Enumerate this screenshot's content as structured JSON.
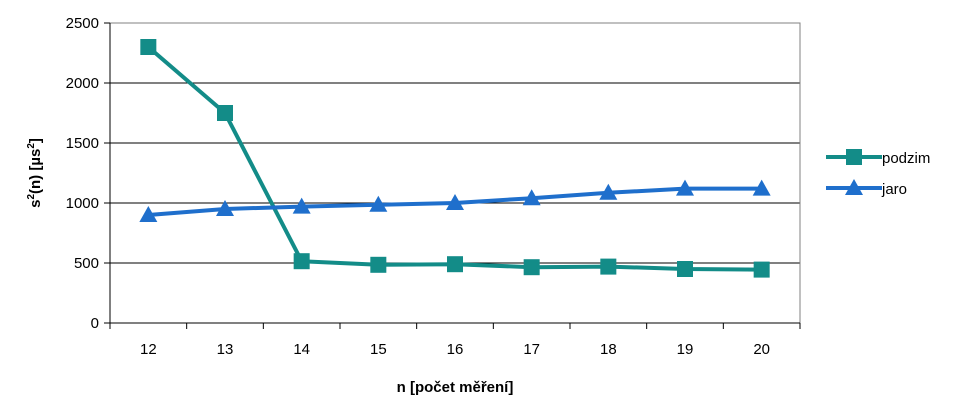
{
  "chart_data": {
    "type": "line",
    "title": "",
    "xlabel": "n [počet měření]",
    "ylabel_parts": [
      "s",
      "2",
      "(n) [µs",
      "2",
      "]"
    ],
    "categories": [
      "12",
      "13",
      "14",
      "15",
      "16",
      "17",
      "18",
      "19",
      "20"
    ],
    "x": [
      12,
      13,
      14,
      15,
      16,
      17,
      18,
      19,
      20
    ],
    "ylim": [
      0,
      2500
    ],
    "yticks": [
      0,
      500,
      1000,
      1500,
      2000,
      2500
    ],
    "grid": true,
    "legend_position": "right",
    "series": [
      {
        "name": "podzim",
        "marker": "square",
        "color": "#138C88",
        "values": [
          2300,
          1750,
          515,
          485,
          490,
          465,
          470,
          450,
          445
        ]
      },
      {
        "name": "jaro",
        "marker": "triangle",
        "color": "#1F6FCC",
        "values": [
          900,
          950,
          970,
          985,
          1000,
          1040,
          1085,
          1120,
          1120
        ]
      }
    ]
  }
}
